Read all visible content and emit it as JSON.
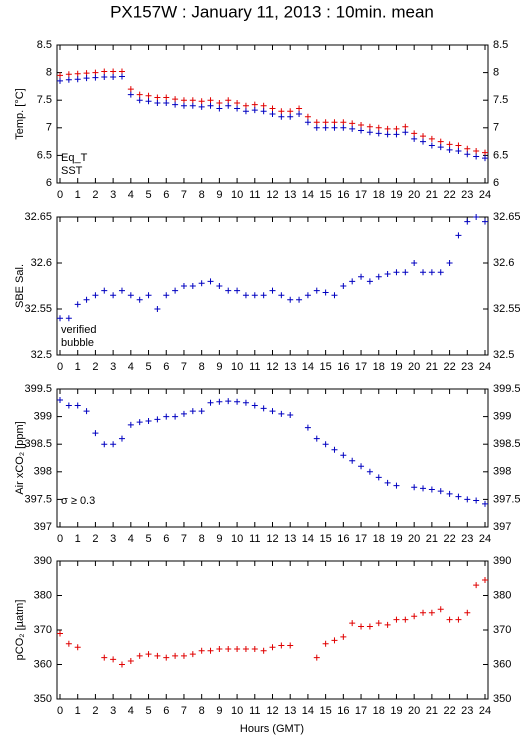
{
  "chart_data": [
    {
      "type": "scatter",
      "title": "PX157W : January 11, 2013 : 10min. mean",
      "ylabel": "Temp. [°C]",
      "x": [
        0,
        0.5,
        1,
        1.5,
        2,
        2.5,
        3,
        3.5,
        4,
        4.5,
        5,
        5.5,
        6,
        6.5,
        7,
        7.5,
        8,
        8.5,
        9,
        9.5,
        10,
        10.5,
        11,
        11.5,
        12,
        12.5,
        13,
        13.5,
        14,
        14.5,
        15,
        15.5,
        16,
        16.5,
        17,
        17.5,
        18,
        18.5,
        19,
        19.5,
        20,
        20.5,
        21,
        21.5,
        22,
        22.5,
        23,
        23.5,
        24
      ],
      "xlim": [
        0,
        24
      ],
      "xticks": [
        0,
        1,
        2,
        3,
        4,
        5,
        6,
        7,
        8,
        9,
        10,
        11,
        12,
        13,
        14,
        15,
        16,
        17,
        18,
        19,
        20,
        21,
        22,
        23,
        24
      ],
      "ylim": [
        6,
        8.5
      ],
      "yticks": [
        6,
        6.5,
        7,
        7.5,
        8,
        8.5
      ],
      "series": [
        {
          "name": "Eq_T",
          "color": "#e00000",
          "values": [
            7.95,
            7.97,
            7.98,
            7.99,
            8.0,
            8.02,
            8.02,
            8.02,
            7.7,
            7.6,
            7.58,
            7.55,
            7.55,
            7.52,
            7.5,
            7.5,
            7.48,
            7.5,
            7.45,
            7.5,
            7.45,
            7.4,
            7.42,
            7.4,
            7.35,
            7.3,
            7.3,
            7.35,
            7.2,
            7.1,
            7.1,
            7.1,
            7.1,
            7.08,
            7.05,
            7.02,
            7.0,
            6.98,
            6.98,
            7.02,
            6.9,
            6.85,
            6.8,
            6.75,
            6.7,
            6.68,
            6.62,
            6.58,
            6.55
          ]
        },
        {
          "name": "SST",
          "color": "#0000c0",
          "values": [
            7.85,
            7.87,
            7.88,
            7.9,
            7.91,
            7.92,
            7.92,
            7.93,
            7.6,
            7.5,
            7.48,
            7.45,
            7.45,
            7.42,
            7.4,
            7.4,
            7.38,
            7.4,
            7.35,
            7.4,
            7.35,
            7.3,
            7.32,
            7.3,
            7.25,
            7.2,
            7.2,
            7.25,
            7.1,
            7.0,
            7.0,
            7.0,
            7.0,
            6.98,
            6.95,
            6.92,
            6.9,
            6.88,
            6.88,
            6.92,
            6.8,
            6.75,
            6.68,
            6.65,
            6.6,
            6.58,
            6.52,
            6.48,
            6.45
          ]
        }
      ]
    },
    {
      "type": "scatter",
      "ylabel": "SBE Sal.",
      "x": [
        0,
        0.5,
        1,
        1.5,
        2,
        2.5,
        3,
        3.5,
        4,
        4.5,
        5,
        5.5,
        6,
        6.5,
        7,
        7.5,
        8,
        8.5,
        9,
        9.5,
        10,
        10.5,
        11,
        11.5,
        12,
        12.5,
        13,
        13.5,
        14,
        14.5,
        15,
        15.5,
        16,
        16.5,
        17,
        17.5,
        18,
        18.5,
        19,
        19.5,
        20,
        20.5,
        21,
        21.5,
        22,
        22.5,
        23,
        23.5,
        24
      ],
      "xlim": [
        0,
        24
      ],
      "xticks": [
        0,
        1,
        2,
        3,
        4,
        5,
        6,
        7,
        8,
        9,
        10,
        11,
        12,
        13,
        14,
        15,
        16,
        17,
        18,
        19,
        20,
        21,
        22,
        23,
        24
      ],
      "ylim": [
        32.5,
        32.65
      ],
      "yticks": [
        32.5,
        32.55,
        32.6,
        32.65
      ],
      "series": [
        {
          "name": "verified",
          "color": "#0000c0",
          "values": [
            32.54,
            32.54,
            32.555,
            32.56,
            32.565,
            32.57,
            32.565,
            32.57,
            32.565,
            32.56,
            32.565,
            32.55,
            32.565,
            32.57,
            32.575,
            32.575,
            32.578,
            32.58,
            32.575,
            32.57,
            32.57,
            32.565,
            32.565,
            32.565,
            32.57,
            32.565,
            32.56,
            32.56,
            32.565,
            32.57,
            32.568,
            32.565,
            32.575,
            32.58,
            32.585,
            32.58,
            32.585,
            32.588,
            32.59,
            32.59,
            32.6,
            32.59,
            32.59,
            32.59,
            32.6,
            32.63,
            32.645,
            32.65,
            32.645
          ]
        }
      ],
      "annotations": [
        {
          "text": "bubble",
          "color": "#c000c0"
        }
      ]
    },
    {
      "type": "scatter",
      "ylabel": "Air xCO₂ [ppm]",
      "x": [
        0,
        0.5,
        1,
        1.5,
        2,
        2.5,
        3,
        3.5,
        4,
        4.5,
        5,
        5.5,
        6,
        6.5,
        7,
        7.5,
        8,
        8.5,
        9,
        9.5,
        10,
        10.5,
        11,
        11.5,
        12,
        12.5,
        13,
        13.5,
        14,
        14.5,
        15,
        15.5,
        16,
        16.5,
        17,
        17.5,
        18,
        18.5,
        19,
        19.5,
        20,
        20.5,
        21,
        21.5,
        22,
        22.5,
        23,
        23.5,
        24
      ],
      "xlim": [
        0,
        24
      ],
      "xticks": [
        0,
        1,
        2,
        3,
        4,
        5,
        6,
        7,
        8,
        9,
        10,
        11,
        12,
        13,
        14,
        15,
        16,
        17,
        18,
        19,
        20,
        21,
        22,
        23,
        24
      ],
      "ylim": [
        397,
        399.5
      ],
      "yticks": [
        397,
        397.5,
        398,
        398.5,
        399,
        399.5
      ],
      "series": [
        {
          "name": "Air xCO2",
          "color": "#0000c0",
          "values": [
            399.3,
            399.2,
            399.2,
            399.1,
            398.7,
            398.5,
            398.5,
            398.6,
            398.85,
            398.9,
            398.92,
            398.95,
            399.0,
            399.0,
            399.05,
            399.1,
            399.1,
            399.25,
            399.27,
            399.28,
            399.27,
            399.25,
            399.2,
            399.15,
            399.1,
            399.05,
            399.03,
            null,
            398.8,
            398.6,
            398.5,
            398.4,
            398.3,
            398.2,
            398.1,
            398.0,
            397.9,
            397.8,
            397.75,
            null,
            397.72,
            397.7,
            397.68,
            397.65,
            397.6,
            397.55,
            397.5,
            397.48,
            397.42
          ]
        }
      ],
      "annotations": [
        {
          "text": "σ ≥ 0.3",
          "color": "#c000c0"
        }
      ]
    },
    {
      "type": "scatter",
      "ylabel": "pCO₂ [µatm]",
      "xlabel": "Hours (GMT)",
      "x": [
        0,
        0.5,
        1,
        1.5,
        2,
        2.5,
        3,
        3.5,
        4,
        4.5,
        5,
        5.5,
        6,
        6.5,
        7,
        7.5,
        8,
        8.5,
        9,
        9.5,
        10,
        10.5,
        11,
        11.5,
        12,
        12.5,
        13,
        13.5,
        14,
        14.5,
        15,
        15.5,
        16,
        16.5,
        17,
        17.5,
        18,
        18.5,
        19,
        19.5,
        20,
        20.5,
        21,
        21.5,
        22,
        22.5,
        23,
        23.5,
        24
      ],
      "xlim": [
        0,
        24
      ],
      "xticks": [
        0,
        1,
        2,
        3,
        4,
        5,
        6,
        7,
        8,
        9,
        10,
        11,
        12,
        13,
        14,
        15,
        16,
        17,
        18,
        19,
        20,
        21,
        22,
        23,
        24
      ],
      "ylim": [
        350,
        390
      ],
      "yticks": [
        350,
        360,
        370,
        380,
        390
      ],
      "series": [
        {
          "name": "pCO2",
          "color": "#e00000",
          "values": [
            369,
            366,
            365,
            null,
            null,
            362,
            361.5,
            360,
            361,
            362.5,
            363,
            362.5,
            362,
            362.5,
            362.5,
            363,
            364,
            364,
            364.5,
            364.5,
            364.5,
            364.5,
            364.5,
            364,
            365,
            365.5,
            365.5,
            null,
            null,
            362,
            366,
            367,
            368,
            372,
            371,
            371,
            372,
            371.5,
            373,
            373,
            374,
            375,
            375,
            376,
            373,
            373,
            375,
            383,
            384.5
          ]
        }
      ]
    }
  ]
}
